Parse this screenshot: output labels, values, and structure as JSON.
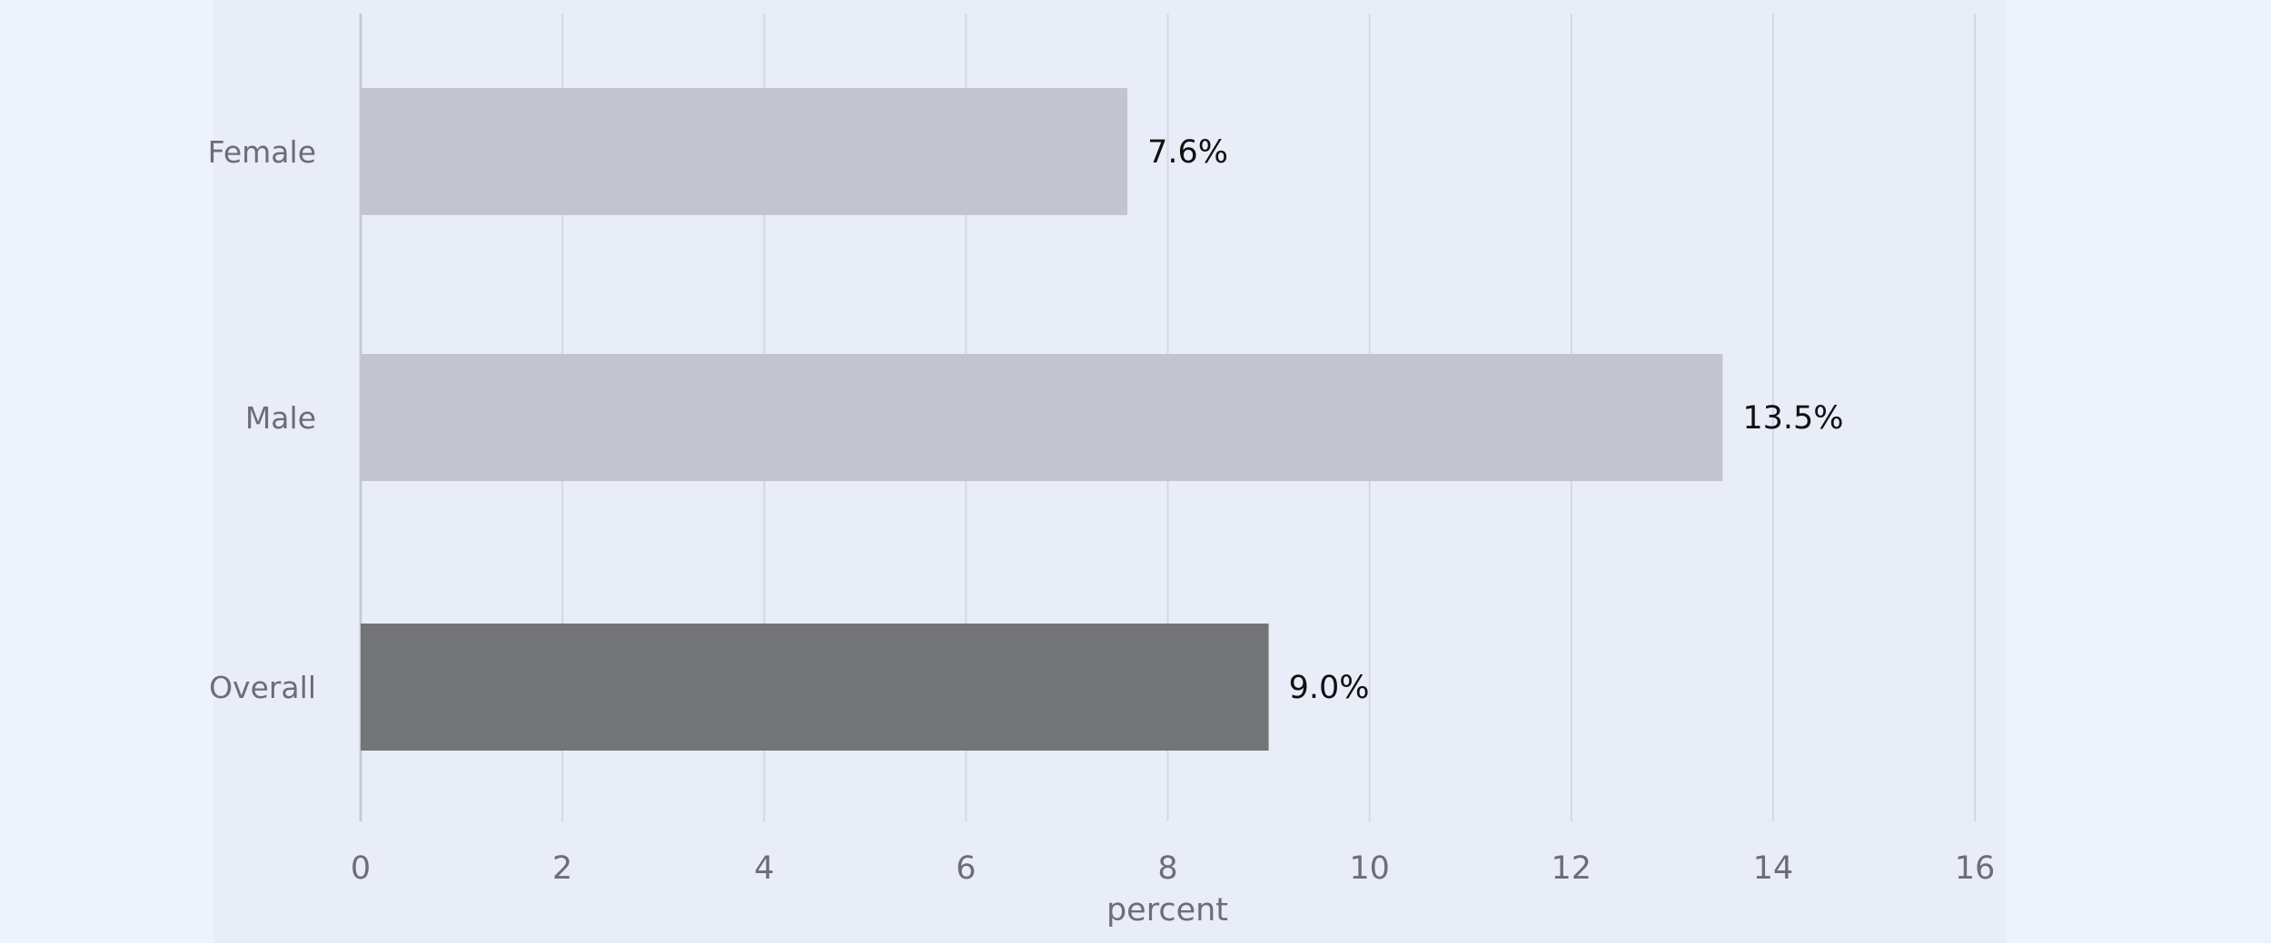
{
  "chart_data": {
    "type": "bar",
    "orientation": "horizontal",
    "categories": [
      "Female",
      "Male",
      "Overall"
    ],
    "values": [
      7.6,
      13.5,
      9.0
    ],
    "value_labels": [
      "7.6%",
      "13.5%",
      "9.0%"
    ],
    "bar_colors": [
      "#c2c5ce",
      "#c2c5ce",
      "#737478"
    ],
    "xlabel": "percent",
    "ylabel": "",
    "xlim": [
      0,
      16
    ],
    "xticks": [
      0,
      2,
      4,
      6,
      8,
      10,
      12,
      14,
      16
    ],
    "grid": true,
    "legend": "none"
  }
}
